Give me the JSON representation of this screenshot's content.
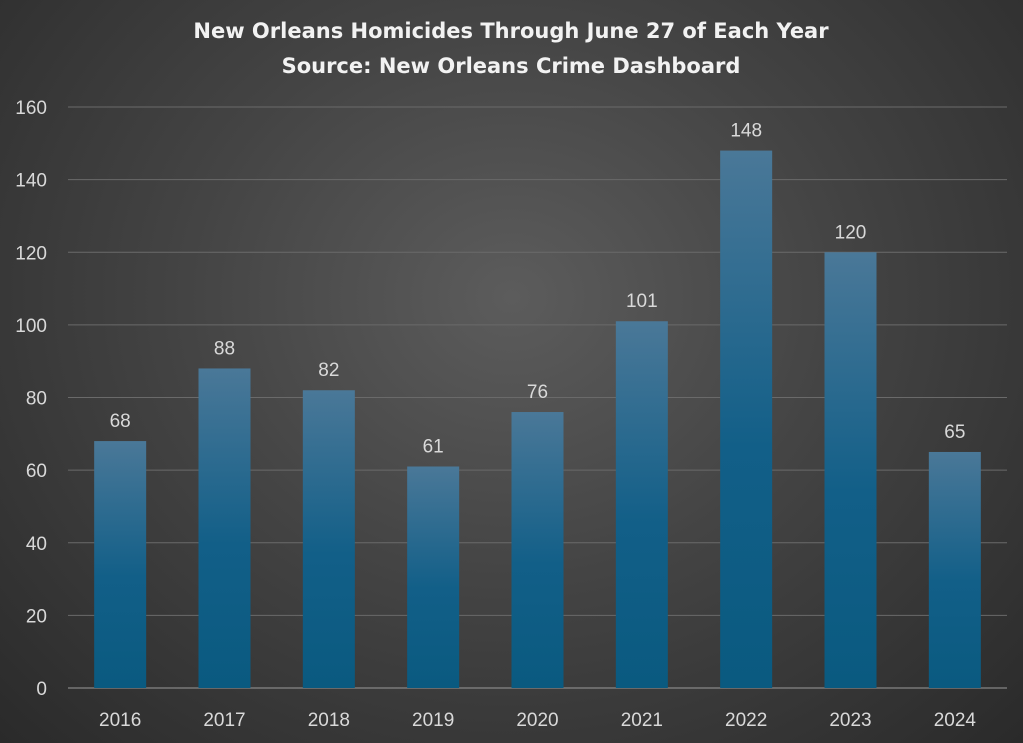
{
  "chart_data": {
    "type": "bar",
    "title": "New Orleans Homicides Through June 27 of Each Year",
    "subtitle": "Source: New Orleans Crime Dashboard",
    "categories": [
      "2016",
      "2017",
      "2018",
      "2019",
      "2020",
      "2021",
      "2022",
      "2023",
      "2024"
    ],
    "values": [
      68,
      88,
      82,
      61,
      76,
      101,
      148,
      120,
      65
    ],
    "xlabel": "",
    "ylabel": "",
    "ylim": [
      0,
      160
    ],
    "yticks": [
      0,
      20,
      40,
      60,
      80,
      100,
      120,
      140,
      160
    ],
    "grid": true,
    "data_labels": true,
    "colors": {
      "bar_top": "#4a7898",
      "bar_bottom": "#0a5a80",
      "grid": "#6a6a6a",
      "text": "#d9d9d9"
    }
  }
}
